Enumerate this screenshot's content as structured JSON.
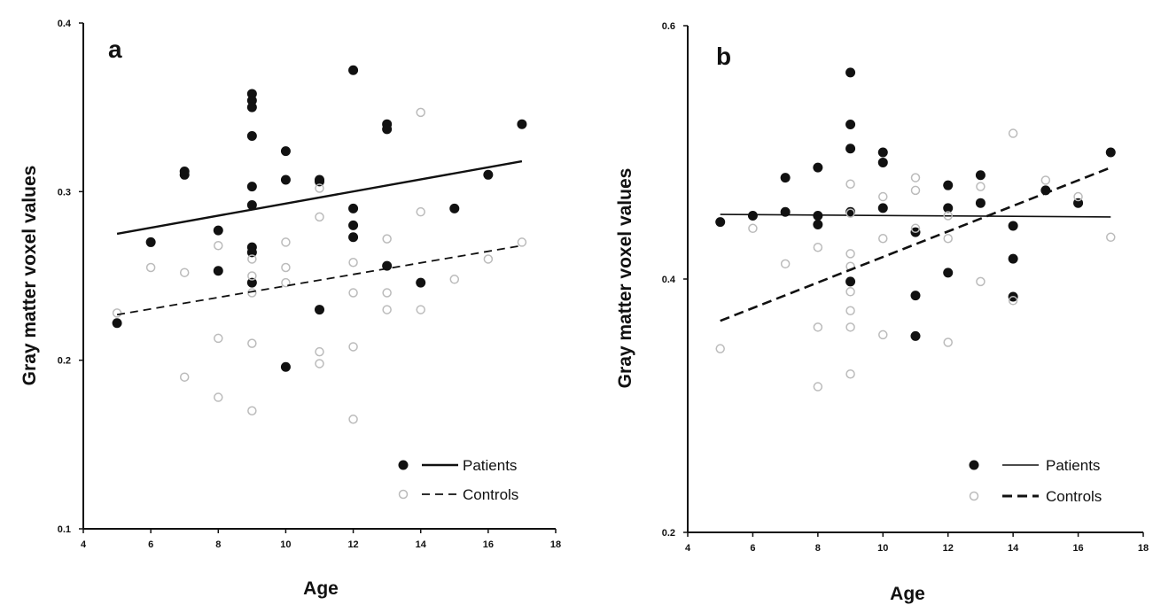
{
  "chart_data": [
    {
      "type": "scatter",
      "panel_label": "a",
      "xlabel": "Age",
      "ylabel": "Gray matter voxel values",
      "xlim": [
        4,
        18
      ],
      "ylim": [
        0.1,
        0.4
      ],
      "xticks": [
        "4",
        "6",
        "8",
        "10",
        "12",
        "14",
        "16",
        "18"
      ],
      "yticks": [
        "0.1",
        "0.2",
        "0.3",
        "0.4"
      ],
      "grid": false,
      "legend_position": "bottom-right",
      "series": [
        {
          "name": "Patients",
          "marker": "filled-circle",
          "line": "solid",
          "points": [
            [
              5,
              0.222
            ],
            [
              6,
              0.27
            ],
            [
              7,
              0.31
            ],
            [
              7,
              0.312
            ],
            [
              8,
              0.277
            ],
            [
              8,
              0.253
            ],
            [
              9,
              0.358
            ],
            [
              9,
              0.354
            ],
            [
              9,
              0.35
            ],
            [
              9,
              0.333
            ],
            [
              9,
              0.303
            ],
            [
              9,
              0.292
            ],
            [
              9,
              0.267
            ],
            [
              9,
              0.264
            ],
            [
              9,
              0.246
            ],
            [
              10,
              0.324
            ],
            [
              10,
              0.307
            ],
            [
              10,
              0.196
            ],
            [
              11,
              0.307
            ],
            [
              11,
              0.306
            ],
            [
              11,
              0.23
            ],
            [
              12,
              0.372
            ],
            [
              12,
              0.29
            ],
            [
              12,
              0.28
            ],
            [
              12,
              0.273
            ],
            [
              13,
              0.34
            ],
            [
              13,
              0.337
            ],
            [
              13,
              0.256
            ],
            [
              14,
              0.246
            ],
            [
              15,
              0.29
            ],
            [
              16,
              0.31
            ],
            [
              17,
              0.34
            ]
          ],
          "fit": [
            [
              5,
              0.275
            ],
            [
              17,
              0.318
            ]
          ]
        },
        {
          "name": "Controls",
          "marker": "open-circle",
          "line": "dashed",
          "points": [
            [
              5,
              0.228
            ],
            [
              6,
              0.255
            ],
            [
              7,
              0.252
            ],
            [
              7,
              0.19
            ],
            [
              8,
              0.268
            ],
            [
              8,
              0.213
            ],
            [
              8,
              0.178
            ],
            [
              9,
              0.26
            ],
            [
              9,
              0.25
            ],
            [
              9,
              0.24
            ],
            [
              9,
              0.21
            ],
            [
              9,
              0.17
            ],
            [
              10,
              0.27
            ],
            [
              10,
              0.255
            ],
            [
              10,
              0.246
            ],
            [
              11,
              0.302
            ],
            [
              11,
              0.285
            ],
            [
              11,
              0.205
            ],
            [
              11,
              0.198
            ],
            [
              12,
              0.258
            ],
            [
              12,
              0.24
            ],
            [
              12,
              0.208
            ],
            [
              12,
              0.165
            ],
            [
              13,
              0.272
            ],
            [
              13,
              0.24
            ],
            [
              13,
              0.23
            ],
            [
              14,
              0.347
            ],
            [
              14,
              0.288
            ],
            [
              14,
              0.23
            ],
            [
              15,
              0.248
            ],
            [
              16,
              0.26
            ],
            [
              17,
              0.27
            ]
          ],
          "fit": [
            [
              5,
              0.227
            ],
            [
              17,
              0.268
            ]
          ]
        }
      ]
    },
    {
      "type": "scatter",
      "panel_label": "b",
      "xlabel": "Age",
      "ylabel": "Gray matter voxel values",
      "xlim": [
        4,
        18
      ],
      "ylim": [
        0.2,
        0.6
      ],
      "xticks": [
        "4",
        "6",
        "8",
        "10",
        "12",
        "14",
        "16",
        "18"
      ],
      "yticks": [
        "0.2",
        "0.4",
        "0.6"
      ],
      "grid": false,
      "legend_position": "bottom-right",
      "series": [
        {
          "name": "Patients",
          "marker": "filled-circle",
          "line": "solid",
          "points": [
            [
              5,
              0.445
            ],
            [
              6,
              0.45
            ],
            [
              7,
              0.48
            ],
            [
              7,
              0.453
            ],
            [
              8,
              0.488
            ],
            [
              8,
              0.45
            ],
            [
              8,
              0.443
            ],
            [
              9,
              0.563
            ],
            [
              9,
              0.522
            ],
            [
              9,
              0.503
            ],
            [
              9,
              0.453
            ],
            [
              9,
              0.398
            ],
            [
              10,
              0.5
            ],
            [
              10,
              0.492
            ],
            [
              10,
              0.456
            ],
            [
              11,
              0.437
            ],
            [
              11,
              0.387
            ],
            [
              11,
              0.355
            ],
            [
              12,
              0.474
            ],
            [
              12,
              0.456
            ],
            [
              12,
              0.405
            ],
            [
              13,
              0.482
            ],
            [
              13,
              0.46
            ],
            [
              14,
              0.442
            ],
            [
              14,
              0.416
            ],
            [
              14,
              0.386
            ],
            [
              15,
              0.47
            ],
            [
              16,
              0.46
            ],
            [
              17,
              0.5
            ]
          ],
          "fit": [
            [
              5,
              0.451
            ],
            [
              17,
              0.449
            ]
          ]
        },
        {
          "name": "Controls",
          "marker": "open-circle",
          "line": "dashed",
          "points": [
            [
              5,
              0.345
            ],
            [
              6,
              0.44
            ],
            [
              7,
              0.412
            ],
            [
              8,
              0.425
            ],
            [
              8,
              0.362
            ],
            [
              8,
              0.315
            ],
            [
              9,
              0.475
            ],
            [
              9,
              0.452
            ],
            [
              9,
              0.42
            ],
            [
              9,
              0.41
            ],
            [
              9,
              0.39
            ],
            [
              9,
              0.375
            ],
            [
              9,
              0.362
            ],
            [
              9,
              0.325
            ],
            [
              10,
              0.465
            ],
            [
              10,
              0.432
            ],
            [
              10,
              0.356
            ],
            [
              11,
              0.48
            ],
            [
              11,
              0.47
            ],
            [
              11,
              0.44
            ],
            [
              12,
              0.45
            ],
            [
              12,
              0.432
            ],
            [
              12,
              0.35
            ],
            [
              13,
              0.473
            ],
            [
              13,
              0.398
            ],
            [
              14,
              0.515
            ],
            [
              14,
              0.383
            ],
            [
              15,
              0.478
            ],
            [
              16,
              0.465
            ],
            [
              17,
              0.433
            ]
          ],
          "fit": [
            [
              5,
              0.367
            ],
            [
              17,
              0.488
            ]
          ]
        }
      ]
    }
  ]
}
